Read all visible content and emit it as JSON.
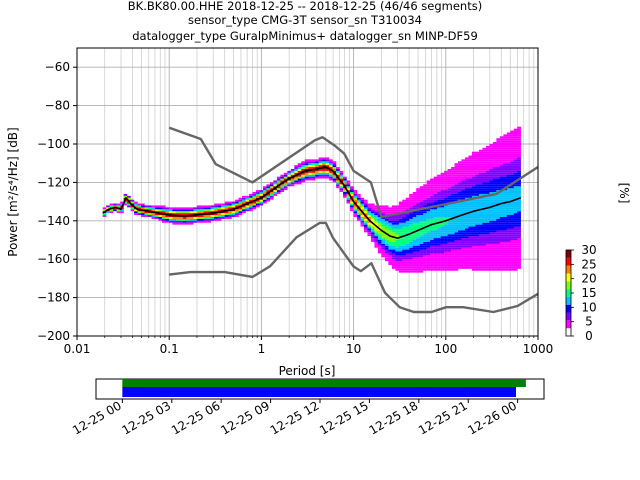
{
  "chart_data": [
    {
      "type": "heatmap",
      "title_lines": [
        "BK.BK80.00.HHE   2018-12-25 -- 2018-12-25  (46/46 segments)",
        "sensor_type CMG-3T sensor_sn T310034",
        "datalogger_type GuralpMinimus+ datalogger_sn MINP-DF59"
      ],
      "xlabel": "Period [s]",
      "ylabel": "Power [m²/s⁴/Hz] [dB]",
      "x_scale": "log",
      "xlim": [
        0.01,
        1000
      ],
      "ylim": [
        -200,
        -50
      ],
      "x_ticks": [
        {
          "value": 0.01,
          "label": "0.01"
        },
        {
          "value": 0.1,
          "label": "0.1"
        },
        {
          "value": 1,
          "label": "1"
        },
        {
          "value": 10,
          "label": "10"
        },
        {
          "value": 100,
          "label": "100"
        },
        {
          "value": 1000,
          "label": "1000"
        }
      ],
      "y_ticks": [
        -60,
        -80,
        -100,
        -120,
        -140,
        -160,
        -180,
        -200
      ],
      "y_tick_labels": [
        "−60",
        "−80",
        "−100",
        "−120",
        "−140",
        "−160",
        "−180",
        "−200"
      ],
      "grid": true,
      "series": [
        {
          "role": "new-high-noise-model",
          "color": "#666666",
          "x": [
            0.1,
            0.22,
            0.32,
            0.8,
            3.8,
            4.6,
            6.3,
            7.9,
            10,
            15.4,
            20,
            354.8,
            1000
          ],
          "y": [
            -91.5,
            -97.4,
            -110.5,
            -120,
            -98,
            -96.5,
            -101,
            -105,
            -114,
            -120,
            -138,
            -126,
            -112
          ]
        },
        {
          "role": "new-low-noise-model",
          "color": "#666666",
          "x": [
            0.1,
            0.17,
            0.4,
            0.8,
            1.24,
            2.4,
            4.3,
            5.0,
            6.0,
            10.0,
            12,
            15.6,
            21.9,
            31.6,
            45,
            70,
            101,
            154,
            328,
            600,
            1000
          ],
          "y": [
            -168,
            -166.7,
            -166.7,
            -169.2,
            -163.7,
            -148.6,
            -141.1,
            -141.1,
            -149,
            -163.8,
            -166.2,
            -162.1,
            -177.5,
            -185,
            -187.5,
            -187.5,
            -185,
            -185,
            -187.5,
            -184.4,
            -178
          ]
        },
        {
          "role": "mean-psd",
          "color": "#000000",
          "x": [
            0.019,
            0.022,
            0.026,
            0.03,
            0.032,
            0.034,
            0.038,
            0.045,
            0.06,
            0.1,
            0.15,
            0.3,
            0.5,
            1,
            1.5,
            2,
            3,
            4,
            5,
            6,
            8,
            10,
            15,
            20,
            25,
            30,
            40,
            50,
            70,
            100,
            150,
            200,
            300,
            400,
            500,
            650
          ],
          "y": [
            -136,
            -134,
            -133,
            -134,
            -131,
            -128,
            -131,
            -134,
            -135,
            -137,
            -137.5,
            -136,
            -134,
            -128,
            -122,
            -118,
            -114,
            -113,
            -112,
            -114,
            -122,
            -130,
            -140,
            -145,
            -148,
            -149,
            -147,
            -145,
            -142,
            -140,
            -137,
            -135,
            -133,
            -131,
            -130,
            -128
          ]
        }
      ],
      "histogram_ridge": {
        "x": [
          0.019,
          0.022,
          0.026,
          0.03,
          0.032,
          0.034,
          0.038,
          0.045,
          0.06,
          0.1,
          0.15,
          0.3,
          0.5,
          1,
          1.5,
          2,
          3,
          4,
          5,
          6,
          8,
          10,
          15,
          20,
          25,
          30,
          40,
          50,
          70,
          100,
          150,
          200,
          300,
          400,
          500,
          650
        ],
        "y": [
          -136,
          -134,
          -133,
          -134,
          -131,
          -128,
          -131,
          -134,
          -135,
          -137,
          -137.5,
          -136,
          -134,
          -128,
          -122,
          -118,
          -114,
          -113,
          -112,
          -114,
          -122,
          -130,
          -140,
          -145,
          -148,
          -149,
          -147,
          -145,
          -142,
          -140,
          -137,
          -135,
          -133,
          -131,
          -130,
          -128
        ],
        "spread_db": [
          2,
          2,
          2,
          2,
          3,
          3,
          3,
          3,
          3,
          4,
          4,
          4,
          4,
          4,
          4,
          4,
          5,
          5,
          5,
          5,
          5,
          6,
          8,
          12,
          14,
          16,
          18,
          20,
          22,
          24,
          26,
          28,
          30,
          32,
          33,
          34
        ]
      },
      "colorbar": {
        "label": "[%]",
        "ticks": [
          0,
          5,
          10,
          15,
          20,
          25,
          30
        ],
        "colors": [
          "#ffffff",
          "#ff00ff",
          "#8000ff",
          "#0000ff",
          "#00c0ff",
          "#00ff80",
          "#80ff00",
          "#ffff00",
          "#ff8000",
          "#ff0000",
          "#800000"
        ]
      }
    },
    {
      "type": "bar",
      "description_axis": "time coverage",
      "x_ticks": [
        "12-25 00",
        "12-25 03",
        "12-25 06",
        "12-25 09",
        "12-25 12",
        "12-25 15",
        "12-25 18",
        "12-25 21",
        "12-26 00"
      ],
      "xlim_hours": [
        -1.6,
        25.6
      ],
      "bars": [
        {
          "role": "data-coverage",
          "color": "#008000",
          "start_hour": 0.0,
          "end_hour": 24.5
        },
        {
          "role": "psd-segments",
          "color": "#0000ff",
          "start_hour": 0.0,
          "end_hour": 23.9
        }
      ]
    }
  ]
}
